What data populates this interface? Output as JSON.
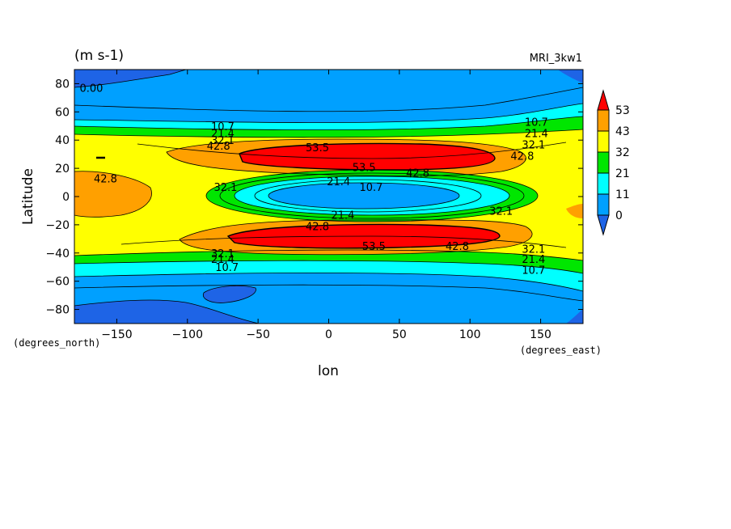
{
  "chart_data": {
    "type": "heatmap",
    "title_left": "(m s-1)",
    "title_right": "MRI_3kw1",
    "xlabel": "lon",
    "ylabel": "Latitude",
    "x_units": "(degrees_east)",
    "y_units": "(degrees_north)",
    "xlim": [
      -180,
      180
    ],
    "ylim": [
      -90,
      90
    ],
    "x_ticks": [
      -150,
      -100,
      -50,
      0,
      50,
      100,
      150
    ],
    "y_ticks": [
      -80,
      -60,
      -40,
      -20,
      0,
      20,
      40,
      60,
      80
    ],
    "colorbar": {
      "labels": [
        "53",
        "43",
        "32",
        "21",
        "11",
        "0"
      ],
      "colors": [
        "#1e64e6",
        "#00a0ff",
        "#00ffff",
        "#00e600",
        "#ffff00",
        "#ffa000",
        "#ff0000"
      ]
    },
    "contour_labels": [
      {
        "text": "0.00",
        "lon": -168,
        "lat": 77
      },
      {
        "text": "10.7",
        "lon": -75,
        "lat": 50
      },
      {
        "text": "21.4",
        "lon": -75,
        "lat": 45
      },
      {
        "text": "32.1",
        "lon": -75,
        "lat": 40
      },
      {
        "text": "42.8",
        "lon": -78,
        "lat": 36
      },
      {
        "text": "53.5",
        "lon": -8,
        "lat": 35
      },
      {
        "text": "53.5",
        "lon": 25,
        "lat": 21
      },
      {
        "text": "42.8",
        "lon": 63,
        "lat": 17
      },
      {
        "text": "42.8",
        "lon": -158,
        "lat": 13
      },
      {
        "text": "32.1",
        "lon": -73,
        "lat": 7
      },
      {
        "text": "21.4",
        "lon": 7,
        "lat": 11
      },
      {
        "text": "10.7",
        "lon": 30,
        "lat": 7
      },
      {
        "text": "21.4",
        "lon": 10,
        "lat": -13
      },
      {
        "text": "32.1",
        "lon": 122,
        "lat": -10
      },
      {
        "text": "42.8",
        "lon": -8,
        "lat": -21
      },
      {
        "text": "53.5",
        "lon": 32,
        "lat": -35
      },
      {
        "text": "42.8",
        "lon": 91,
        "lat": -35
      },
      {
        "text": "10.7",
        "lon": 147,
        "lat": 53
      },
      {
        "text": "21.4",
        "lon": 147,
        "lat": 45
      },
      {
        "text": "32.1",
        "lon": 145,
        "lat": 37
      },
      {
        "text": "42.8",
        "lon": 137,
        "lat": 29
      },
      {
        "text": "32.1",
        "lon": -75,
        "lat": -40
      },
      {
        "text": "21.4",
        "lon": -75,
        "lat": -44
      },
      {
        "text": "10.7",
        "lon": -72,
        "lat": -50
      },
      {
        "text": "32.1",
        "lon": 145,
        "lat": -37
      },
      {
        "text": "21.4",
        "lon": 145,
        "lat": -44
      },
      {
        "text": "10.7",
        "lon": 145,
        "lat": -52
      }
    ],
    "grid": false,
    "legend": "right"
  }
}
